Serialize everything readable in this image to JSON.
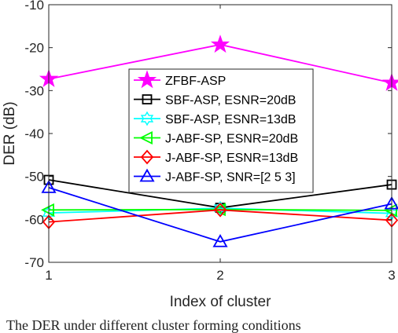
{
  "chart_data": {
    "type": "line",
    "title": "",
    "xlabel": "Index of cluster",
    "ylabel": "DER (dB)",
    "x": [
      1,
      2,
      3
    ],
    "xlim": [
      1,
      3
    ],
    "ylim": [
      -70,
      -10
    ],
    "xticks": [
      "1",
      "2",
      "3"
    ],
    "yticks": [
      "-10",
      "-20",
      "-30",
      "-40",
      "-50",
      "-60",
      "-70"
    ],
    "grid": false,
    "legend_position": "center-left",
    "series": [
      {
        "name": "ZFBF-ASP",
        "values": [
          -27.3,
          -19.3,
          -28.2
        ],
        "color": "#ff00ff",
        "marker": "star"
      },
      {
        "name": "SBF-ASP, ESNR=20dB",
        "values": [
          -50.8,
          -57.3,
          -51.9
        ],
        "color": "#000000",
        "marker": "square"
      },
      {
        "name": "SBF-ASP, ESNR=13dB",
        "values": [
          -58.5,
          -57.4,
          -58.6
        ],
        "color": "#00ffff",
        "marker": "hexagram"
      },
      {
        "name": "J-ABF-SP, ESNR=20dB",
        "values": [
          -57.8,
          -57.7,
          -57.9
        ],
        "color": "#00ff00",
        "marker": "triangle-left"
      },
      {
        "name": "J-ABF-SP, ESNR=13dB",
        "values": [
          -60.6,
          -57.8,
          -60.2
        ],
        "color": "#ff0000",
        "marker": "diamond"
      },
      {
        "name": "J-ABF-SP, SNR=[2 5 3]",
        "values": [
          -52.6,
          -65.2,
          -56.4
        ],
        "color": "#0000ff",
        "marker": "triangle-up"
      }
    ]
  },
  "caption": "The DER under different cluster forming conditions"
}
